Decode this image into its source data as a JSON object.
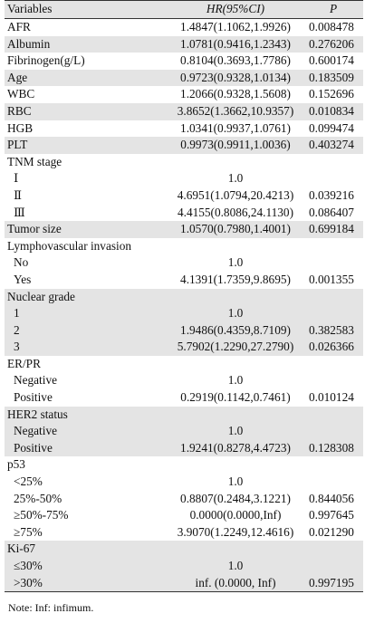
{
  "header": {
    "col1": "Variables",
    "col2": "HR(95%CI)",
    "col3": "P"
  },
  "rows": [
    {
      "label": "AFR",
      "hr": "1.4847(1.1062,1.9926)",
      "p": "0.008478",
      "shade": false,
      "sub": false
    },
    {
      "label": "Albumin",
      "hr": "1.0781(0.9416,1.2343)",
      "p": "0.276206",
      "shade": true,
      "sub": false
    },
    {
      "label": "Fibrinogen(g/L)",
      "hr": "0.8104(0.3693,1.7786)",
      "p": "0.600174",
      "shade": false,
      "sub": false
    },
    {
      "label": "Age",
      "hr": "0.9723(0.9328,1.0134)",
      "p": "0.183509",
      "shade": true,
      "sub": false
    },
    {
      "label": "WBC",
      "hr": "1.2066(0.9328,1.5608)",
      "p": "0.152696",
      "shade": false,
      "sub": false
    },
    {
      "label": "RBC",
      "hr": "3.8652(1.3662,10.9357)",
      "p": "0.010834",
      "shade": true,
      "sub": false
    },
    {
      "label": "HGB",
      "hr": "1.0341(0.9937,1.0761)",
      "p": "0.099474",
      "shade": false,
      "sub": false
    },
    {
      "label": "PLT",
      "hr": "0.9973(0.9911,1.0036)",
      "p": "0.403274",
      "shade": true,
      "sub": false
    },
    {
      "label": "TNM stage",
      "hr": "",
      "p": "",
      "shade": false,
      "sub": false
    },
    {
      "label": "Ⅰ",
      "hr": "1.0",
      "p": "",
      "shade": false,
      "sub": true
    },
    {
      "label": "Ⅱ",
      "hr": "4.6951(1.0794,20.4213)",
      "p": "0.039216",
      "shade": false,
      "sub": true
    },
    {
      "label": "Ⅲ",
      "hr": "4.4155(0.8086,24.1130)",
      "p": "0.086407",
      "shade": false,
      "sub": true
    },
    {
      "label": "Tumor size",
      "hr": "1.0570(0.7980,1.4001)",
      "p": "0.699184",
      "shade": true,
      "sub": false
    },
    {
      "label": "Lymphovascular invasion",
      "hr": "",
      "p": "",
      "shade": false,
      "sub": false
    },
    {
      "label": "No",
      "hr": "1.0",
      "p": "",
      "shade": false,
      "sub": true
    },
    {
      "label": "Yes",
      "hr": "4.1391(1.7359,9.8695)",
      "p": "0.001355",
      "shade": false,
      "sub": true
    },
    {
      "label": "Nuclear grade",
      "hr": "",
      "p": "",
      "shade": true,
      "sub": false
    },
    {
      "label": "1",
      "hr": "1.0",
      "p": "",
      "shade": true,
      "sub": true
    },
    {
      "label": "2",
      "hr": "1.9486(0.4359,8.7109)",
      "p": "0.382583",
      "shade": true,
      "sub": true
    },
    {
      "label": "3",
      "hr": "5.7902(1.2290,27.2790)",
      "p": "0.026366",
      "shade": true,
      "sub": true
    },
    {
      "label": "ER/PR",
      "hr": "",
      "p": "",
      "shade": false,
      "sub": false
    },
    {
      "label": "Negative",
      "hr": "1.0",
      "p": "",
      "shade": false,
      "sub": true
    },
    {
      "label": "Positive",
      "hr": "0.2919(0.1142,0.7461)",
      "p": "0.010124",
      "shade": false,
      "sub": true
    },
    {
      "label": "HER2 status",
      "hr": "",
      "p": "",
      "shade": true,
      "sub": false
    },
    {
      "label": "Negative",
      "hr": "1.0",
      "p": "",
      "shade": true,
      "sub": true
    },
    {
      "label": "Positive",
      "hr": "1.9241(0.8278,4.4723)",
      "p": "0.128308",
      "shade": true,
      "sub": true
    },
    {
      "label": "p53",
      "hr": "",
      "p": "",
      "shade": false,
      "sub": false
    },
    {
      "label": "<25%",
      "hr": "1.0",
      "p": "",
      "shade": false,
      "sub": true
    },
    {
      "label": "25%-50%",
      "hr": "0.8807(0.2484,3.1221)",
      "p": "0.844056",
      "shade": false,
      "sub": true
    },
    {
      "label": "≥50%-75%",
      "hr": "0.0000(0.0000,Inf)",
      "p": "0.997645",
      "shade": false,
      "sub": true
    },
    {
      "label": "≥75%",
      "hr": "3.9070(1.2249,12.4616)",
      "p": "0.021290",
      "shade": false,
      "sub": true
    },
    {
      "label": "Ki-67",
      "hr": "",
      "p": "",
      "shade": true,
      "sub": false
    },
    {
      "label": "≤30%",
      "hr": "1.0",
      "p": "",
      "shade": true,
      "sub": true
    },
    {
      "label": ">30%",
      "hr": "inf. (0.0000, Inf)",
      "p": "0.997195",
      "shade": true,
      "sub": true
    }
  ],
  "note": "Note: Inf: infimum."
}
